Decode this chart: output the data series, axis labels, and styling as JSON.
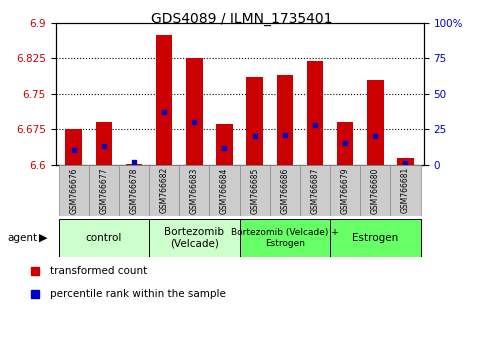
{
  "title": "GDS4089 / ILMN_1735401",
  "samples": [
    "GSM766676",
    "GSM766677",
    "GSM766678",
    "GSM766682",
    "GSM766683",
    "GSM766684",
    "GSM766685",
    "GSM766686",
    "GSM766687",
    "GSM766679",
    "GSM766680",
    "GSM766681"
  ],
  "red_values": [
    6.675,
    6.69,
    6.602,
    6.875,
    6.825,
    6.685,
    6.785,
    6.79,
    6.82,
    6.69,
    6.78,
    6.615
  ],
  "blue_values_pct": [
    10,
    13,
    2,
    37,
    30,
    12,
    20,
    21,
    28,
    15,
    20,
    1
  ],
  "y_min": 6.6,
  "y_max": 6.9,
  "y_ticks": [
    6.6,
    6.675,
    6.75,
    6.825,
    6.9
  ],
  "y_ticks_right": [
    0,
    25,
    50,
    75,
    100
  ],
  "y_ticks_right_labels": [
    "0",
    "25",
    "50",
    "75",
    "100%"
  ],
  "groups": [
    {
      "label": "control",
      "start": 0,
      "end": 2,
      "color": "#ccffcc"
    },
    {
      "label": "Bortezomib\n(Velcade)",
      "start": 3,
      "end": 5,
      "color": "#ccffcc"
    },
    {
      "label": "Bortezomib (Velcade) +\nEstrogen",
      "start": 6,
      "end": 8,
      "color": "#66ff66"
    },
    {
      "label": "Estrogen",
      "start": 9,
      "end": 11,
      "color": "#66ff66"
    }
  ],
  "bar_color": "#cc0000",
  "dot_color": "#0000cc",
  "baseline": 6.6,
  "bar_width": 0.55,
  "legend_red": "transformed count",
  "legend_blue": "percentile rank within the sample",
  "agent_label": "agent",
  "tick_label_color_left": "#cc0000",
  "tick_label_color_right": "#0000cc",
  "sample_box_color": "#cccccc",
  "sample_box_edge": "#888888"
}
